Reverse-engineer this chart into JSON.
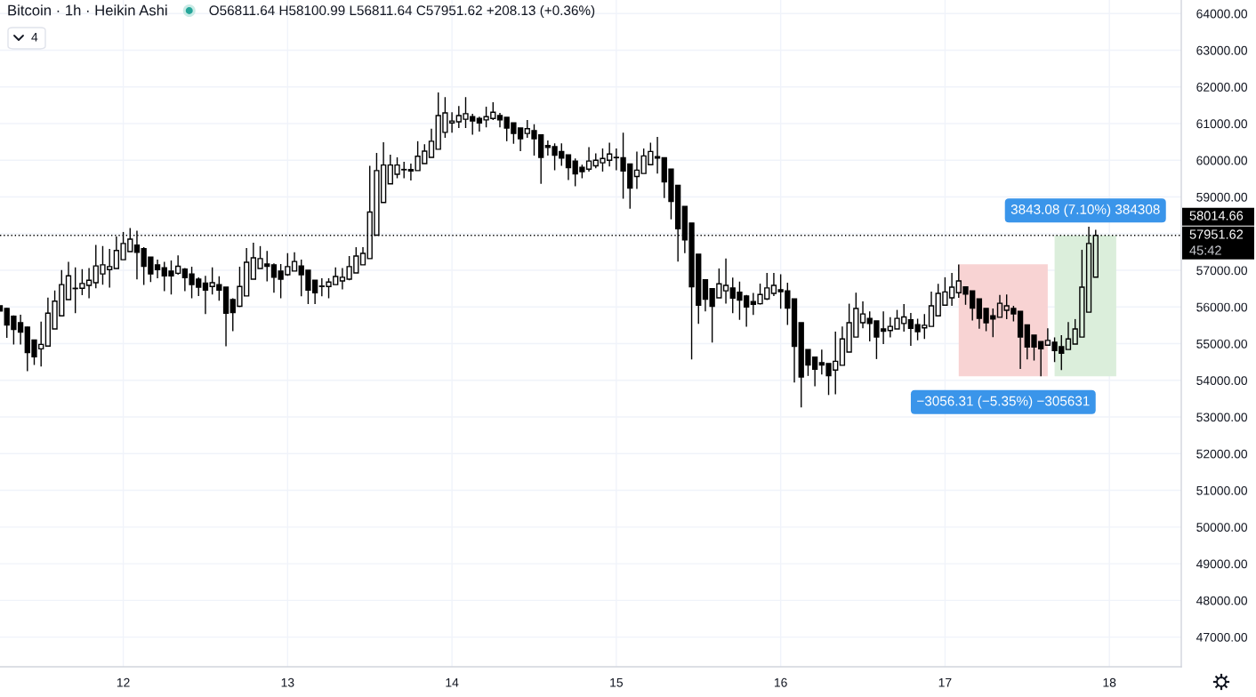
{
  "chart_data": {
    "type": "candlestick",
    "title": "Bitcoin · 1h · Heikin Ashi",
    "subtitle": "O56811.64 H58100.99 L56811.64 C57951.62 +208.13 (+0.36%)",
    "x": [
      11.25,
      11.2917,
      11.3333,
      11.375,
      11.4167,
      11.4583,
      11.5,
      11.5417,
      11.5833,
      11.625,
      11.6667,
      11.7083,
      11.75,
      11.7917,
      11.8333,
      11.875,
      11.9167,
      11.9583,
      12,
      12.0417,
      12.0833,
      12.125,
      12.1667,
      12.2083,
      12.25,
      12.2917,
      12.3333,
      12.375,
      12.4167,
      12.4583,
      12.5,
      12.5417,
      12.5833,
      12.625,
      12.6667,
      12.7083,
      12.75,
      12.7917,
      12.8333,
      12.875,
      12.9167,
      12.9583,
      13,
      13.0417,
      13.0833,
      13.125,
      13.1667,
      13.2083,
      13.25,
      13.2917,
      13.3333,
      13.375,
      13.4167,
      13.4583,
      13.5,
      13.5417,
      13.5833,
      13.625,
      13.6667,
      13.7083,
      13.75,
      13.7917,
      13.8333,
      13.875,
      13.9167,
      13.9583,
      14,
      14.0417,
      14.0833,
      14.125,
      14.1667,
      14.2083,
      14.25,
      14.2917,
      14.3333,
      14.375,
      14.4167,
      14.4583,
      14.5,
      14.5417,
      14.5833,
      14.625,
      14.6667,
      14.7083,
      14.75,
      14.7917,
      14.8333,
      14.875,
      14.9167,
      14.9583,
      15,
      15.0417,
      15.0833,
      15.125,
      15.1667,
      15.2083,
      15.25,
      15.2917,
      15.3333,
      15.375,
      15.4167,
      15.4583,
      15.5,
      15.5417,
      15.5833,
      15.625,
      15.6667,
      15.7083,
      15.75,
      15.7917,
      15.8333,
      15.875,
      15.9167,
      15.9583,
      16,
      16.0417,
      16.0833,
      16.125,
      16.1667,
      16.2083,
      16.25,
      16.2917,
      16.3333,
      16.375,
      16.4167,
      16.4583,
      16.5,
      16.5417,
      16.5833,
      16.625,
      16.6667,
      16.7083,
      16.75,
      16.7917,
      16.8333,
      16.875,
      16.9167,
      16.9583,
      17,
      17.0417,
      17.0833,
      17.125,
      17.1667,
      17.2083,
      17.25,
      17.2917,
      17.3333,
      17.375,
      17.4167,
      17.4583,
      17.5,
      17.5417,
      17.5833,
      17.625,
      17.6667,
      17.7083,
      17.75,
      17.7917,
      17.8333,
      17.875,
      17.9167
    ],
    "ohlc": [
      [
        56030,
        56030,
        55890,
        55890
      ],
      [
        55960,
        55970,
        55160,
        55510
      ],
      [
        55750,
        55770,
        54975,
        55390
      ],
      [
        55570,
        55790,
        54975,
        55315
      ],
      [
        55450,
        55460,
        54250,
        54760
      ],
      [
        55100,
        55110,
        54420,
        54640
      ],
      [
        54860,
        55600,
        54380,
        54980
      ],
      [
        54935,
        56255,
        54935,
        55830
      ],
      [
        55400,
        56450,
        55400,
        56160
      ],
      [
        55760,
        57010,
        55760,
        56610
      ],
      [
        56200,
        57230,
        56200,
        56850
      ],
      [
        56500,
        57080,
        55830,
        56510
      ],
      [
        56510,
        57030,
        56320,
        56640
      ],
      [
        56590,
        57060,
        56240,
        56730
      ],
      [
        56660,
        57690,
        56510,
        57120
      ],
      [
        56900,
        57660,
        56610,
        57150
      ],
      [
        57020,
        57580,
        56530,
        57100
      ],
      [
        57050,
        57920,
        57050,
        57540
      ],
      [
        57290,
        58045,
        57290,
        57730
      ],
      [
        57510,
        58150,
        57510,
        57850
      ],
      [
        57690,
        58080,
        56750,
        57490
      ],
      [
        57590,
        57630,
        56600,
        57110
      ],
      [
        57360,
        57365,
        56680,
        56900
      ],
      [
        57150,
        57290,
        56780,
        57020
      ],
      [
        57070,
        57230,
        56430,
        56850
      ],
      [
        56980,
        57270,
        56340,
        56850
      ],
      [
        56920,
        57410,
        56880,
        57110
      ],
      [
        57030,
        57060,
        56430,
        56800
      ],
      [
        56900,
        57100,
        56240,
        56610
      ],
      [
        56760,
        56810,
        56300,
        56540
      ],
      [
        56650,
        56850,
        55810,
        56460
      ],
      [
        56560,
        57080,
        56340,
        56660
      ],
      [
        56610,
        56840,
        56170,
        56460
      ],
      [
        56540,
        56540,
        54930,
        55830
      ],
      [
        56200,
        56240,
        55340,
        55850
      ],
      [
        56020,
        57100,
        56000,
        56560
      ],
      [
        56300,
        57610,
        56300,
        57220
      ],
      [
        56760,
        57750,
        56760,
        57340
      ],
      [
        57050,
        57660,
        57050,
        57320
      ],
      [
        57170,
        57530,
        56700,
        57110
      ],
      [
        57150,
        57190,
        56390,
        56810
      ],
      [
        56980,
        57170,
        56240,
        56760
      ],
      [
        56880,
        57470,
        56850,
        57100
      ],
      [
        56980,
        57490,
        56980,
        57240
      ],
      [
        57120,
        57290,
        56290,
        56880
      ],
      [
        57000,
        57000,
        56080,
        56460
      ],
      [
        56730,
        56730,
        56080,
        56390
      ],
      [
        56560,
        56780,
        56290,
        56570
      ],
      [
        56560,
        56780,
        56240,
        56680
      ],
      [
        56610,
        57080,
        56610,
        56830
      ],
      [
        56710,
        57060,
        56480,
        56810
      ],
      [
        56760,
        57390,
        56730,
        57100
      ],
      [
        56930,
        57630,
        56930,
        57390
      ],
      [
        57150,
        57630,
        57150,
        57460
      ],
      [
        57320,
        59850,
        57320,
        58590
      ],
      [
        57960,
        60200,
        57960,
        59720
      ],
      [
        58850,
        60490,
        58850,
        59870
      ],
      [
        59360,
        60150,
        59360,
        59870
      ],
      [
        59620,
        60080,
        59510,
        59870
      ],
      [
        59740,
        59960,
        59510,
        59750
      ],
      [
        59750,
        59910,
        59450,
        59710
      ],
      [
        59720,
        60520,
        59720,
        60110
      ],
      [
        59910,
        60440,
        59910,
        60250
      ],
      [
        60080,
        60860,
        60080,
        60520
      ],
      [
        60300,
        61850,
        60300,
        61220
      ],
      [
        60760,
        61720,
        60610,
        61290
      ],
      [
        61020,
        61310,
        60750,
        61070
      ],
      [
        61050,
        61480,
        60880,
        61220
      ],
      [
        61120,
        61720,
        60880,
        61270
      ],
      [
        61190,
        61270,
        60700,
        61070
      ],
      [
        61140,
        61190,
        60780,
        61020
      ],
      [
        61100,
        61460,
        60900,
        61190
      ],
      [
        61140,
        61580,
        61100,
        61310
      ],
      [
        61220,
        61290,
        60900,
        61100
      ],
      [
        61170,
        61170,
        60520,
        60880
      ],
      [
        61020,
        61020,
        60450,
        60730
      ],
      [
        60880,
        60880,
        60250,
        60590
      ],
      [
        60730,
        61100,
        60610,
        60860
      ],
      [
        60810,
        60980,
        60130,
        60590
      ],
      [
        60690,
        60690,
        59360,
        60080
      ],
      [
        60400,
        60540,
        60130,
        60350
      ],
      [
        60370,
        60460,
        59730,
        60140
      ],
      [
        60240,
        60460,
        59850,
        60060
      ],
      [
        60150,
        60150,
        59460,
        59800
      ],
      [
        59980,
        60050,
        59290,
        59630
      ],
      [
        59810,
        59880,
        59510,
        59690
      ],
      [
        59760,
        60360,
        59690,
        59980
      ],
      [
        59850,
        60190,
        59780,
        60000
      ],
      [
        59930,
        60320,
        59690,
        60050
      ],
      [
        60000,
        60480,
        59830,
        60170
      ],
      [
        60070,
        60320,
        59730,
        60080
      ],
      [
        60070,
        60750,
        58950,
        59710
      ],
      [
        59900,
        59900,
        58680,
        59240
      ],
      [
        59560,
        60240,
        59220,
        59730
      ],
      [
        59640,
        60320,
        59640,
        60120
      ],
      [
        59880,
        60480,
        59880,
        60240
      ],
      [
        60100,
        60640,
        59640,
        60060
      ],
      [
        60070,
        60070,
        58970,
        59410
      ],
      [
        59760,
        59760,
        58390,
        58880
      ],
      [
        59320,
        59320,
        57240,
        58130
      ],
      [
        58740,
        58740,
        57470,
        57830
      ],
      [
        58290,
        58290,
        54570,
        56550
      ],
      [
        57440,
        57440,
        55540,
        56050
      ],
      [
        56740,
        56740,
        55880,
        56210
      ],
      [
        56500,
        56500,
        55030,
        56020
      ],
      [
        56250,
        57050,
        56250,
        56630
      ],
      [
        56440,
        57320,
        56090,
        56590
      ],
      [
        56520,
        56800,
        55830,
        56240
      ],
      [
        56400,
        56690,
        55650,
        56190
      ],
      [
        56300,
        56330,
        55460,
        56000
      ],
      [
        56150,
        56380,
        55780,
        56070
      ],
      [
        56090,
        56640,
        56070,
        56340
      ],
      [
        56220,
        56930,
        56190,
        56520
      ],
      [
        56370,
        56930,
        56300,
        56590
      ],
      [
        56470,
        56890,
        55950,
        56420
      ],
      [
        56440,
        56660,
        55510,
        55970
      ],
      [
        56220,
        56220,
        53940,
        54930
      ],
      [
        55570,
        55570,
        53260,
        54090
      ],
      [
        54840,
        54840,
        54120,
        54420
      ],
      [
        54630,
        54630,
        53840,
        54300
      ],
      [
        54480,
        54840,
        54160,
        54420
      ],
      [
        54460,
        54460,
        53600,
        54130
      ],
      [
        54280,
        55330,
        53620,
        54520
      ],
      [
        54410,
        55470,
        54410,
        55130
      ],
      [
        54770,
        56090,
        54770,
        55570
      ],
      [
        55180,
        56390,
        55180,
        55960
      ],
      [
        55570,
        56150,
        55420,
        55810
      ],
      [
        55690,
        55880,
        55060,
        55550
      ],
      [
        55620,
        55620,
        54580,
        55180
      ],
      [
        55400,
        55880,
        54990,
        55340
      ],
      [
        55360,
        55720,
        55170,
        55470
      ],
      [
        55400,
        55920,
        55400,
        55690
      ],
      [
        55550,
        56080,
        55330,
        55730
      ],
      [
        55650,
        55840,
        54940,
        55420
      ],
      [
        55520,
        55680,
        55090,
        55330
      ],
      [
        55430,
        55810,
        55130,
        55500
      ],
      [
        55470,
        56420,
        55470,
        56030
      ],
      [
        55760,
        56630,
        55760,
        56370
      ],
      [
        56050,
        56810,
        56050,
        56410
      ],
      [
        56250,
        56930,
        56030,
        56540
      ],
      [
        56390,
        57160,
        56250,
        56710
      ],
      [
        56550,
        56550,
        56060,
        56350
      ],
      [
        56440,
        56440,
        55630,
        55970
      ],
      [
        56220,
        56220,
        55410,
        55690
      ],
      [
        55960,
        55960,
        55340,
        55570
      ],
      [
        55760,
        55960,
        55180,
        55670
      ],
      [
        55720,
        56330,
        55720,
        56100
      ],
      [
        55910,
        56340,
        55670,
        56030
      ],
      [
        55960,
        56030,
        55610,
        55810
      ],
      [
        55880,
        55880,
        54310,
        55180
      ],
      [
        55510,
        55510,
        54570,
        54910
      ],
      [
        55230,
        55230,
        54540,
        54910
      ],
      [
        55060,
        55060,
        54110,
        54860
      ],
      [
        54960,
        55420,
        54960,
        55090
      ],
      [
        55040,
        55170,
        54500,
        54810
      ],
      [
        54920,
        55230,
        54280,
        54740
      ],
      [
        54840,
        55590,
        54840,
        55130
      ],
      [
        54990,
        55670,
        54990,
        55400
      ],
      [
        55180,
        57560,
        55180,
        56540
      ],
      [
        55860,
        58190,
        55860,
        57730
      ],
      [
        56811.64,
        58100.99,
        56811.64,
        57951.62
      ]
    ],
    "color": "#000000",
    "xlim": [
      11.25,
      18.4375
    ],
    "ylim": [
      46190,
      64370
    ],
    "xticks": [
      12,
      13,
      14,
      15,
      16,
      17,
      18
    ],
    "yticks": [
      {
        "value": 47000,
        "label": "47000.00"
      },
      {
        "value": 48000,
        "label": "48000.00"
      },
      {
        "value": 49000,
        "label": "49000.00"
      },
      {
        "value": 50000,
        "label": "50000.00"
      },
      {
        "value": 51000,
        "label": "51000.00"
      },
      {
        "value": 52000,
        "label": "52000.00"
      },
      {
        "value": 53000,
        "label": "53000.00"
      },
      {
        "value": 54000,
        "label": "54000.00"
      },
      {
        "value": 55000,
        "label": "55000.00"
      },
      {
        "value": 56000,
        "label": "56000.00"
      },
      {
        "value": 57000,
        "label": "57000.00"
      },
      {
        "value": 58000,
        "label": null
      },
      {
        "value": 59000,
        "label": "59000.00"
      },
      {
        "value": 60000,
        "label": "60000.00"
      },
      {
        "value": 61000,
        "label": "61000.00"
      },
      {
        "value": 62000,
        "label": "62000.00"
      },
      {
        "value": 63000,
        "label": "63000.00"
      },
      {
        "value": 64000,
        "label": "64000.00"
      }
    ],
    "grid": true,
    "series": [
      {
        "type": "line",
        "x": [
          17.0833,
          17.625
        ],
        "values": [
          null,
          null
        ],
        "lower": [
          54108.54,
          54108.54
        ],
        "upper": [
          57164.85,
          57164.85
        ],
        "color": "#f8d3d3"
      },
      {
        "type": "line",
        "x": [
          17.6667,
          18.0417
        ],
        "values": [
          null,
          null
        ],
        "lower": [
          54108.54,
          54108.54
        ],
        "upper": [
          57951.62,
          57951.62
        ],
        "color": "#dbeedb"
      }
    ],
    "ref_lines": [
      {
        "axis": "y",
        "value": 57951.62,
        "label": "57951.62",
        "color": "#000000",
        "line_style": "dotted"
      }
    ],
    "annotations": [
      "4",
      "58014.66",
      "45:42",
      {
        "text": "−3056.31 (−5.35%) −305631",
        "x": 17.3542,
        "y": 54108.54
      },
      {
        "text": "3843.08 (7.10%) 384308",
        "x": 17.8542,
        "y": 57951.62
      }
    ]
  }
}
